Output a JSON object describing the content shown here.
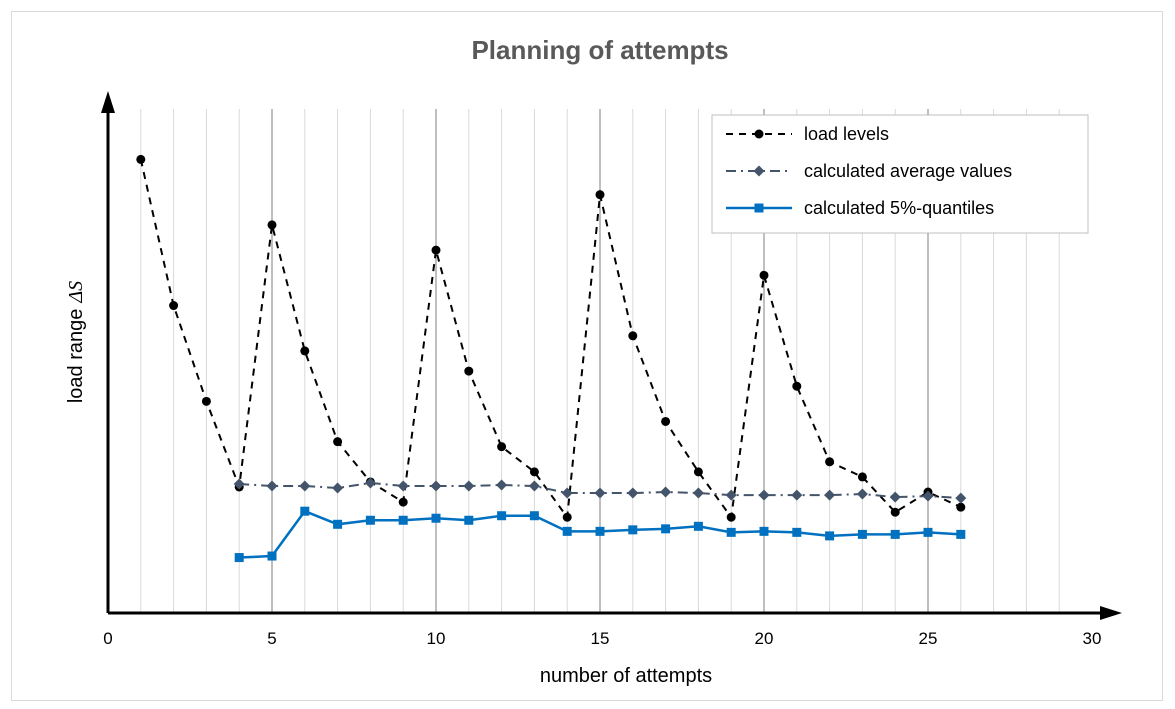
{
  "chart_data": {
    "type": "line",
    "title": "Planning of attempts",
    "xlabel": "number  of attempts",
    "ylabel": "load range",
    "ylabel_symbol": "ΔS",
    "xlim": [
      0,
      30
    ],
    "ylim": [
      0,
      1
    ],
    "x_ticks": [
      0,
      5,
      10,
      15,
      20,
      25,
      30
    ],
    "y_ticks_shown": false,
    "grid": "vertical lines at every integer; darker at multiples of 5",
    "legend_position": "top-right",
    "series": [
      {
        "name": "load levels",
        "style": "dashed",
        "marker": "circle",
        "color": "#000000",
        "x": [
          1,
          2,
          3,
          4,
          5,
          6,
          7,
          8,
          9,
          10,
          11,
          12,
          13,
          14,
          15,
          16,
          17,
          18,
          19,
          20,
          21,
          22,
          23,
          24,
          25,
          26
        ],
        "y": [
          0.9,
          0.61,
          0.42,
          0.25,
          0.77,
          0.52,
          0.34,
          0.26,
          0.22,
          0.72,
          0.48,
          0.33,
          0.28,
          0.19,
          0.83,
          0.55,
          0.38,
          0.28,
          0.19,
          0.67,
          0.45,
          0.3,
          0.27,
          0.2,
          0.24,
          0.21
        ]
      },
      {
        "name": "calculated average values",
        "style": "dash-dot",
        "marker": "diamond",
        "color": "#44546a",
        "x": [
          4,
          5,
          6,
          7,
          8,
          9,
          10,
          11,
          12,
          13,
          14,
          15,
          16,
          17,
          18,
          19,
          20,
          21,
          22,
          23,
          24,
          25,
          26
        ],
        "y": [
          0.256,
          0.252,
          0.252,
          0.248,
          0.258,
          0.252,
          0.252,
          0.252,
          0.254,
          0.252,
          0.238,
          0.238,
          0.238,
          0.24,
          0.238,
          0.234,
          0.234,
          0.234,
          0.234,
          0.236,
          0.23,
          0.232,
          0.228
        ]
      },
      {
        "name": "calculated 5%-quantiles",
        "style": "solid",
        "marker": "square",
        "color": "#0070c0",
        "x": [
          4,
          5,
          6,
          7,
          8,
          9,
          10,
          11,
          12,
          13,
          14,
          15,
          16,
          17,
          18,
          19,
          20,
          21,
          22,
          23,
          24,
          25,
          26
        ],
        "y": [
          0.11,
          0.113,
          0.202,
          0.176,
          0.184,
          0.184,
          0.188,
          0.184,
          0.193,
          0.193,
          0.162,
          0.162,
          0.165,
          0.167,
          0.172,
          0.16,
          0.162,
          0.16,
          0.153,
          0.156,
          0.156,
          0.16,
          0.156
        ]
      }
    ]
  }
}
